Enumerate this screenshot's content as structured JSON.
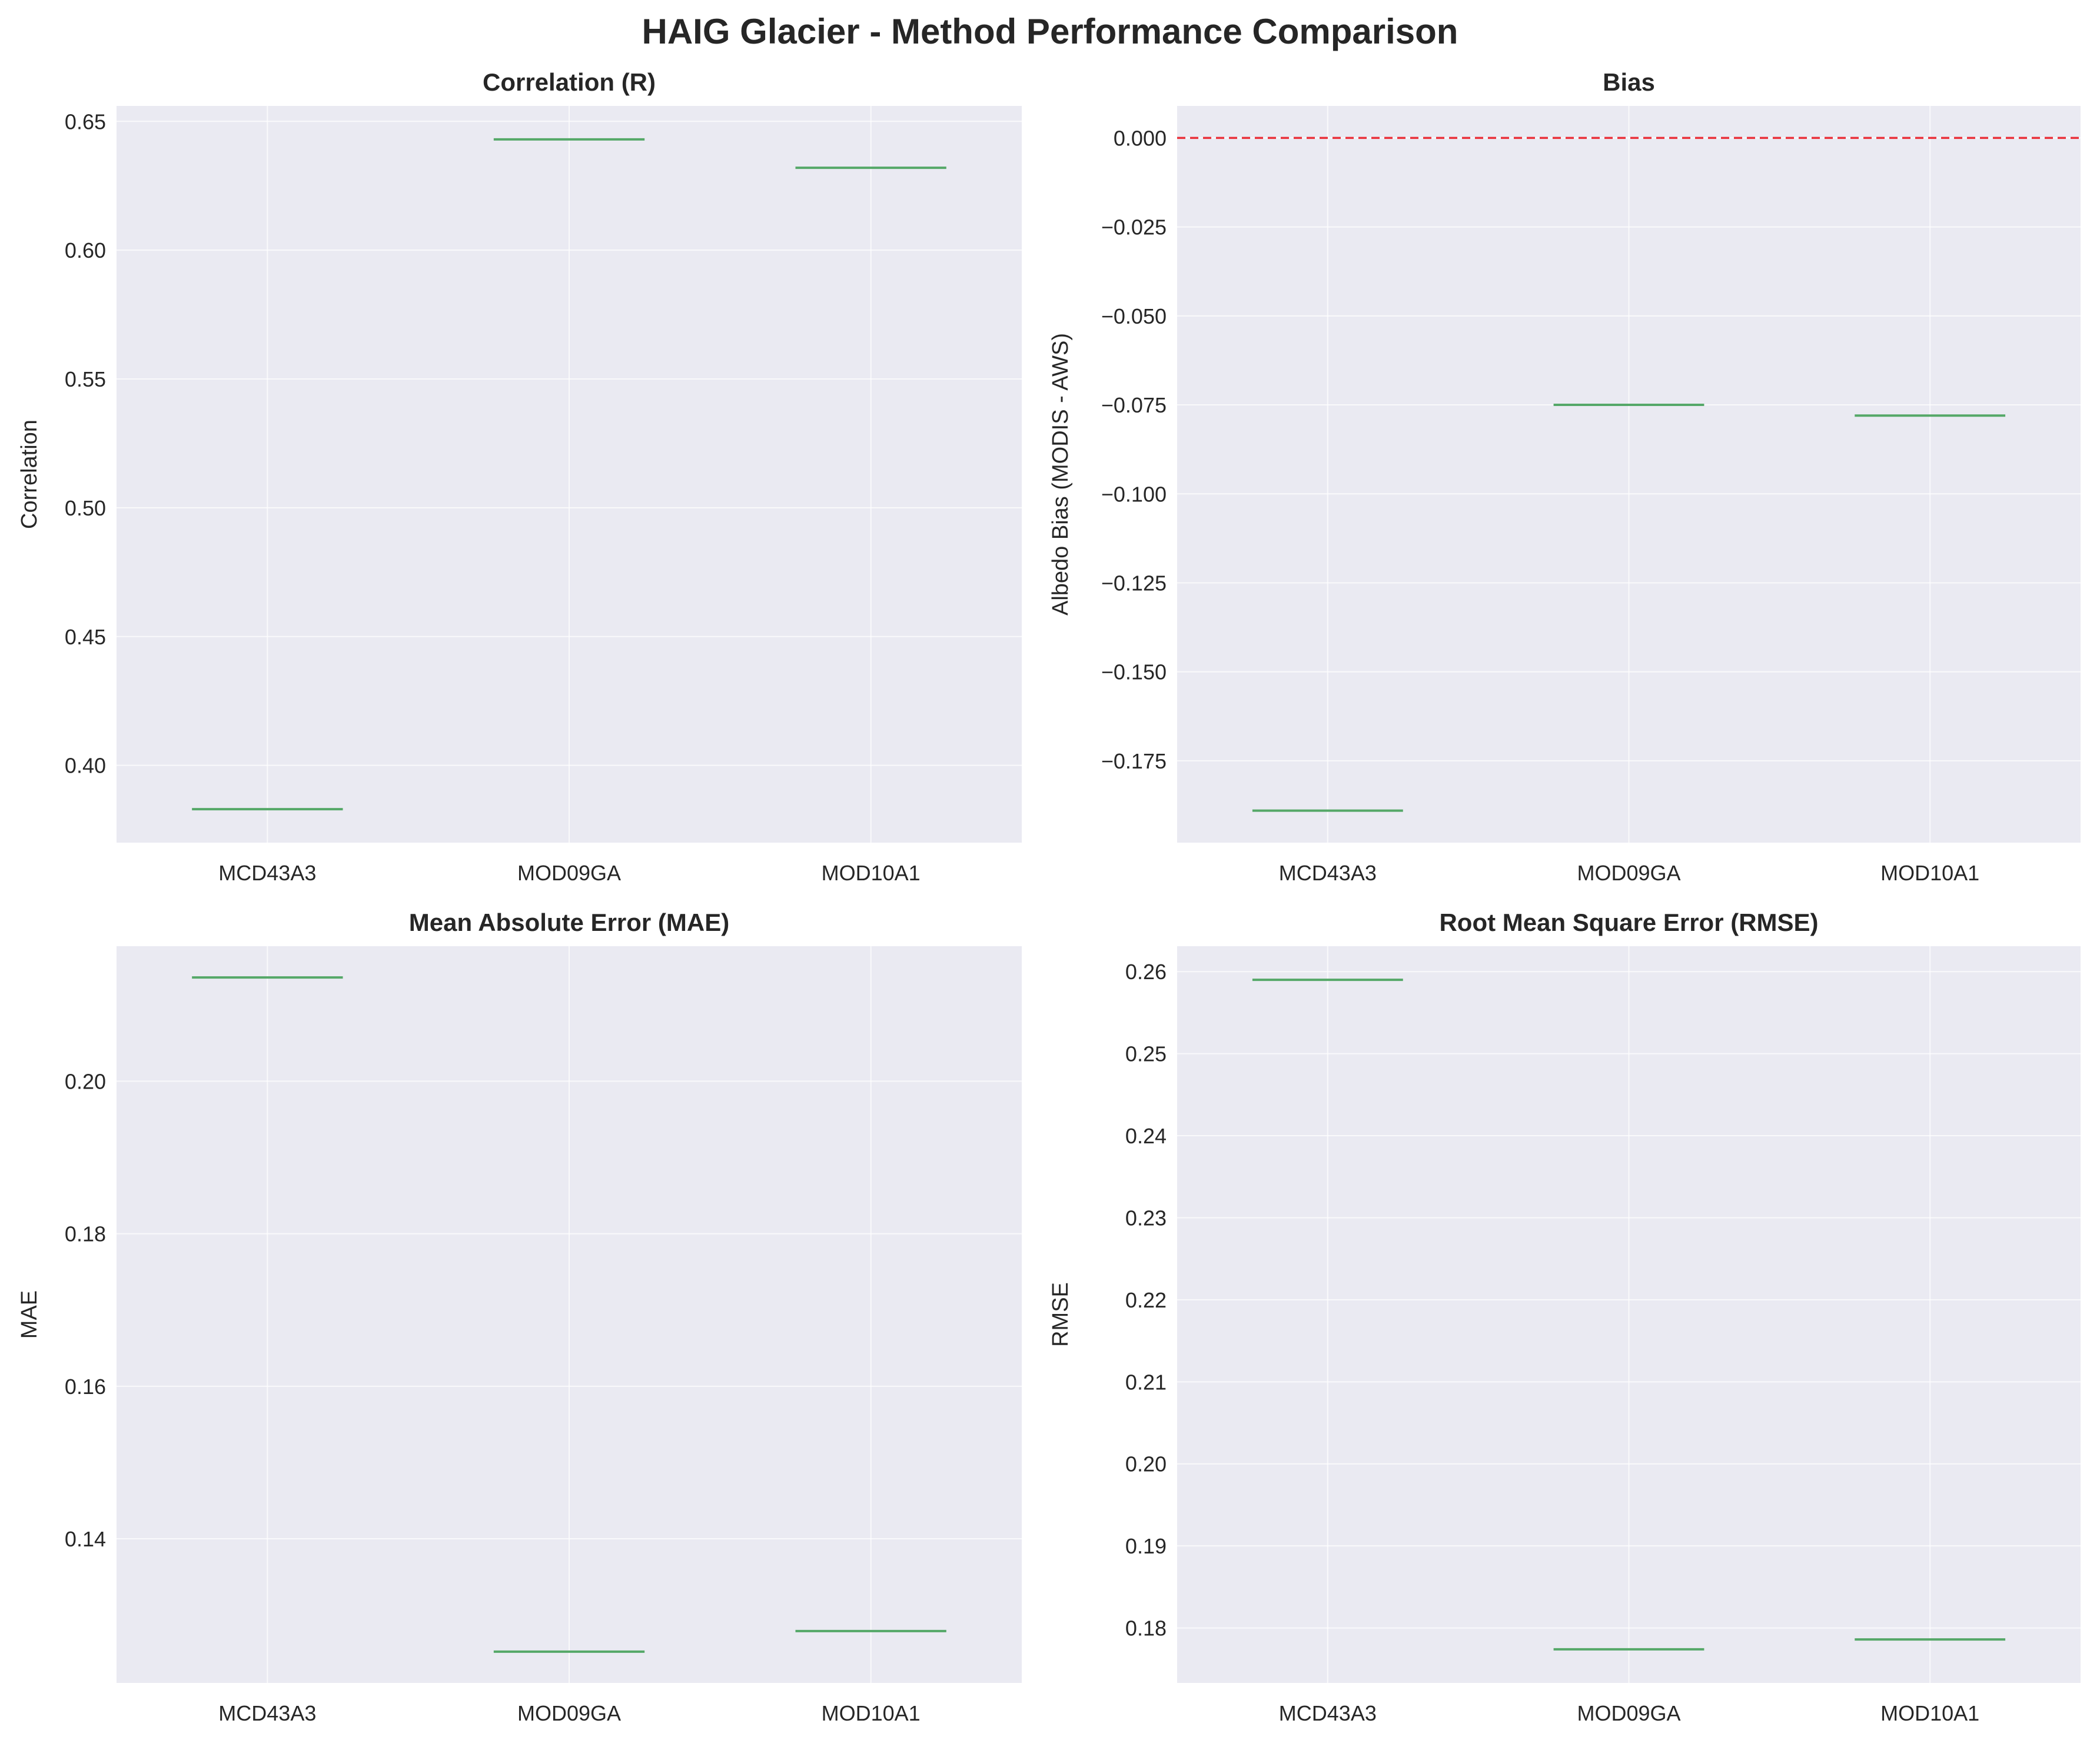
{
  "figure": {
    "title": "HAIG Glacier - Method Performance Comparison"
  },
  "colors": {
    "panel_background": "#EAEAF2",
    "grid": "#FFFFFF",
    "median_line": "#55A868",
    "reference_line": "#E8000B",
    "text": "#262626"
  },
  "chart_data": [
    {
      "type": "box",
      "title": "Correlation (R)",
      "ylabel": "Correlation",
      "xlabel": "",
      "categories": [
        "MCD43A3",
        "MOD09GA",
        "MOD10A1"
      ],
      "values": [
        0.383,
        0.643,
        0.632
      ],
      "ylim": [
        0.37,
        0.656
      ],
      "yticks": [
        0.4,
        0.45,
        0.5,
        0.55,
        0.6,
        0.65
      ],
      "ytick_labels": [
        "0.40",
        "0.45",
        "0.50",
        "0.55",
        "0.60",
        "0.65"
      ],
      "grid": true
    },
    {
      "type": "box",
      "title": "Bias",
      "ylabel": "Albedo Bias (MODIS - AWS)",
      "xlabel": "",
      "categories": [
        "MCD43A3",
        "MOD09GA",
        "MOD10A1"
      ],
      "values": [
        -0.189,
        -0.075,
        -0.078
      ],
      "ylim": [
        -0.198,
        0.009
      ],
      "yticks": [
        0.0,
        -0.025,
        -0.05,
        -0.075,
        -0.1,
        -0.125,
        -0.15,
        -0.175
      ],
      "ytick_labels": [
        "0.000",
        "−0.025",
        "−0.050",
        "−0.075",
        "−0.100",
        "−0.125",
        "−0.150",
        "−0.175"
      ],
      "reference_line": 0.0,
      "grid": true
    },
    {
      "type": "box",
      "title": "Mean Absolute Error (MAE)",
      "ylabel": "MAE",
      "xlabel": "",
      "categories": [
        "MCD43A3",
        "MOD09GA",
        "MOD10A1"
      ],
      "values": [
        0.2136,
        0.1252,
        0.1279
      ],
      "ylim": [
        0.1211,
        0.2177
      ],
      "yticks": [
        0.14,
        0.16,
        0.18,
        0.2
      ],
      "ytick_labels": [
        "0.14",
        "0.16",
        "0.18",
        "0.20"
      ],
      "grid": true
    },
    {
      "type": "box",
      "title": "Root Mean Square Error (RMSE)",
      "ylabel": "RMSE",
      "xlabel": "",
      "categories": [
        "MCD43A3",
        "MOD09GA",
        "MOD10A1"
      ],
      "values": [
        0.259,
        0.1774,
        0.1786
      ],
      "ylim": [
        0.1733,
        0.2631
      ],
      "yticks": [
        0.18,
        0.19,
        0.2,
        0.21,
        0.22,
        0.23,
        0.24,
        0.25,
        0.26
      ],
      "ytick_labels": [
        "0.18",
        "0.19",
        "0.20",
        "0.21",
        "0.22",
        "0.23",
        "0.24",
        "0.25",
        "0.26"
      ],
      "grid": true
    }
  ]
}
